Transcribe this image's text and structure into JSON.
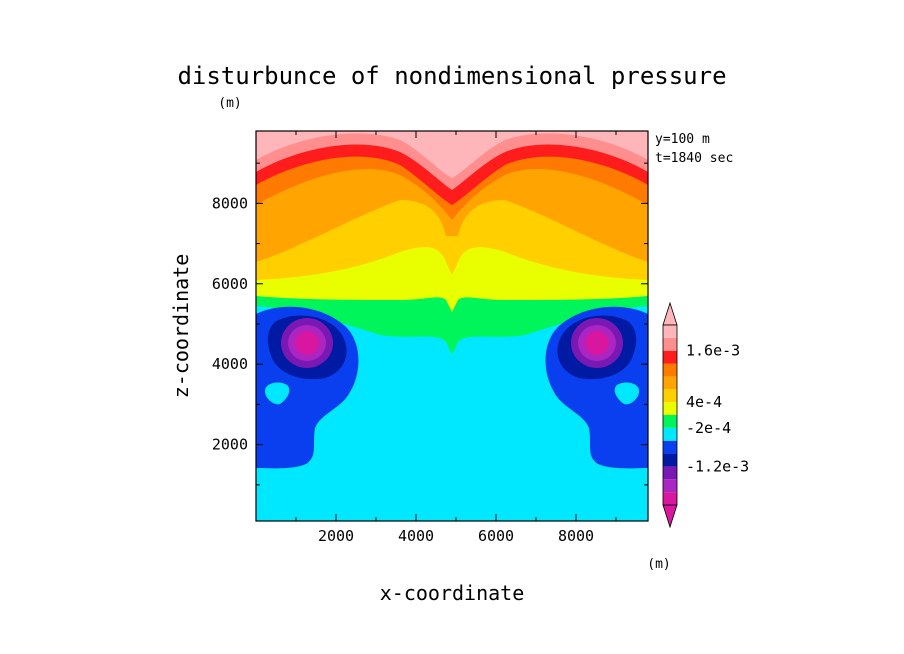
{
  "chart_data": {
    "type": "heatmap",
    "title": "disturbunce of nondimensional pressure",
    "unit_top": "(m)",
    "unit_colorbar": "(m)",
    "xlabel": "x-coordinate",
    "ylabel": "z-coordinate",
    "xlim": [
      0,
      9800
    ],
    "ylim": [
      100,
      9800
    ],
    "xticks": [
      2000,
      4000,
      6000,
      8000
    ],
    "yticks": [
      2000,
      4000,
      6000,
      8000
    ],
    "xtick_labels": [
      "2000",
      "4000",
      "6000",
      "8000"
    ],
    "ytick_labels": [
      "2000",
      "4000",
      "6000",
      "8000"
    ],
    "annotation": [
      "y=100 m",
      "t=1840 sec"
    ],
    "colorbar": {
      "levels_colors": [
        "#d8169f",
        "#aa25c2",
        "#7a18b4",
        "#001aa3",
        "#0a3fef",
        "#00e8ff",
        "#00f55a",
        "#e9ff00",
        "#ffcf00",
        "#ffa400",
        "#ff7a00",
        "#ff1c1c",
        "#ff8f8f",
        "#ffb6ba"
      ],
      "tick_labels": [
        "1.6e-3",
        "4e-4",
        "-2e-4",
        "-1.2e-3"
      ],
      "tick_boundary_index": [
        12,
        8,
        6,
        3
      ]
    }
  }
}
